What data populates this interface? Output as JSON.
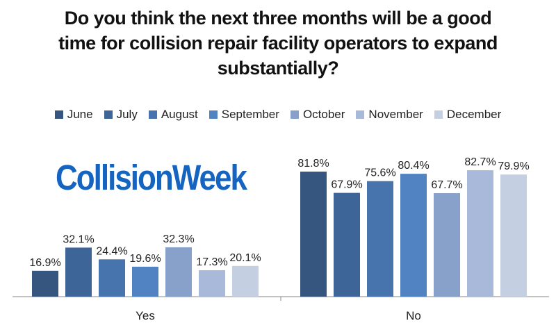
{
  "title_lines": [
    "Do you think the next three months will be a good",
    "time for collision repair facility operators to expand",
    "substantially?"
  ],
  "logo_text": "CollisionWeek",
  "chart_data": {
    "type": "bar",
    "title": "Do you think the next three months will be a good time for collision repair facility operators to expand substantially?",
    "categories": [
      "Yes",
      "No"
    ],
    "series": [
      {
        "name": "June",
        "color": "#36557f",
        "values": [
          16.9,
          81.8
        ]
      },
      {
        "name": "July",
        "color": "#3e6597",
        "values": [
          32.1,
          67.9
        ]
      },
      {
        "name": "August",
        "color": "#4874ad",
        "values": [
          24.4,
          75.6
        ]
      },
      {
        "name": "September",
        "color": "#5183c2",
        "values": [
          19.6,
          80.4
        ]
      },
      {
        "name": "October",
        "color": "#87a1cb",
        "values": [
          32.3,
          67.7
        ]
      },
      {
        "name": "November",
        "color": "#a9b9d9",
        "values": [
          17.3,
          82.7
        ]
      },
      {
        "name": "December",
        "color": "#c4cfe2",
        "values": [
          20.1,
          79.9
        ]
      }
    ],
    "value_labels": [
      [
        "16.9%",
        "81.8%"
      ],
      [
        "32.1%",
        "67.9%"
      ],
      [
        "24.4%",
        "75.6%"
      ],
      [
        "19.6%",
        "80.4%"
      ],
      [
        "32.3%",
        "67.7%"
      ],
      [
        "17.3%",
        "82.7%"
      ],
      [
        "20.1%",
        "79.9%"
      ]
    ],
    "ylim": [
      0,
      100
    ],
    "grid": false,
    "legend_position": "top"
  }
}
